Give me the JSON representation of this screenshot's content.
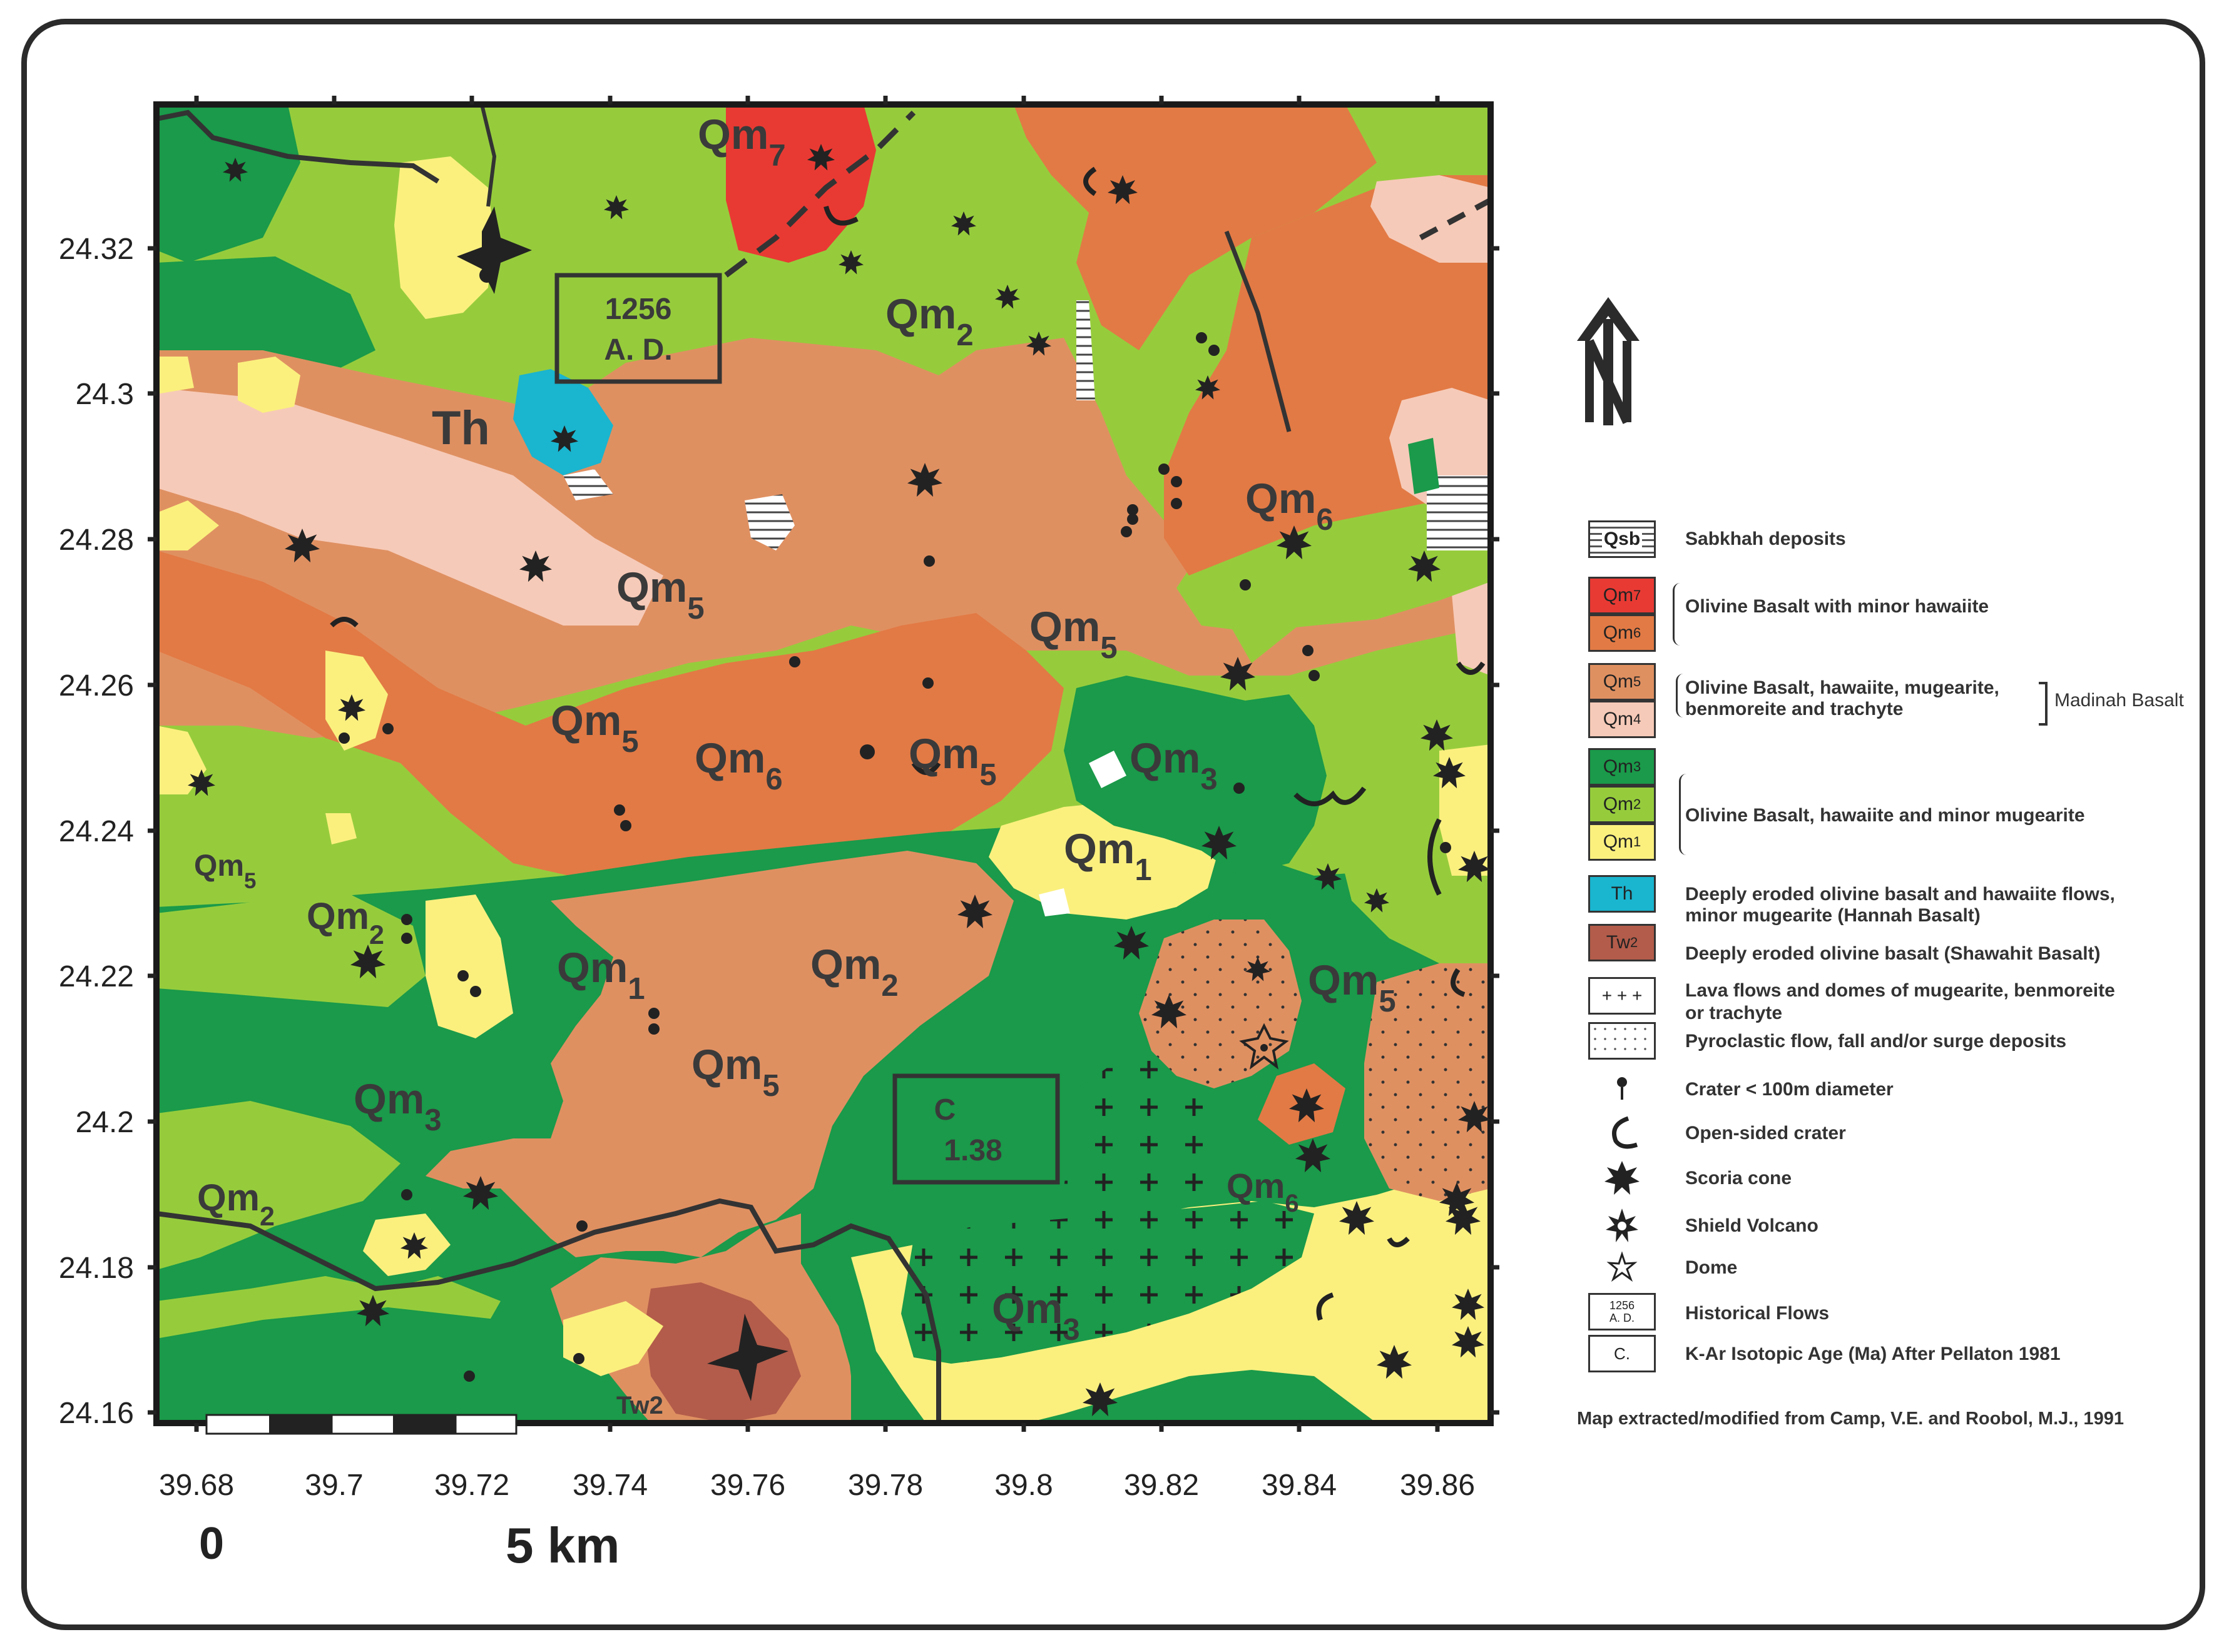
{
  "map": {
    "y_ticks": [
      "24.32",
      "24.3",
      "24.28",
      "24.26",
      "24.24",
      "24.22",
      "24.2",
      "24.18",
      "24.16"
    ],
    "x_ticks": [
      "39.68",
      "39.7",
      "39.72",
      "39.74",
      "39.76",
      "39.78",
      "39.8",
      "39.82",
      "39.84",
      "39.86"
    ],
    "scale": {
      "start": "0",
      "end": "5 km"
    },
    "north_label": "N",
    "units": [
      {
        "label": "Qm",
        "sub": "7"
      },
      {
        "label": "Qm",
        "sub": "2"
      },
      {
        "label": "Th",
        "sub": ""
      },
      {
        "label": "Qm",
        "sub": "6"
      },
      {
        "label": "Qm",
        "sub": "5"
      },
      {
        "label": "Qm",
        "sub": "5"
      },
      {
        "label": "Qm",
        "sub": "5"
      },
      {
        "label": "Qm",
        "sub": "6"
      },
      {
        "label": "Qm",
        "sub": "5"
      },
      {
        "label": "Qm",
        "sub": "3"
      },
      {
        "label": "Qm",
        "sub": "5"
      },
      {
        "label": "Qm",
        "sub": "1"
      },
      {
        "label": "Qm",
        "sub": "2"
      },
      {
        "label": "Qm",
        "sub": "1"
      },
      {
        "label": "Qm",
        "sub": "2"
      },
      {
        "label": "Qm",
        "sub": "5"
      },
      {
        "label": "Qm",
        "sub": "3"
      },
      {
        "label": "Qm",
        "sub": "5"
      },
      {
        "label": "Qm",
        "sub": "2"
      },
      {
        "label": "Qm",
        "sub": "6"
      },
      {
        "label": "Qm",
        "sub": "3"
      },
      {
        "label": "Tw2",
        "sub": ""
      }
    ],
    "boxes": [
      {
        "line1": "1256",
        "line2": "A. D."
      },
      {
        "line1": "C",
        "line2": "1.38"
      }
    ],
    "colors": {
      "qm7": "#e83a33",
      "qm6": "#e27a45",
      "qm5": "#df9061",
      "qm4": "#f6cab8",
      "qm3": "#1a9a4a",
      "qm2": "#96cc3c",
      "qm1": "#fbf07e",
      "th": "#1ab5cf",
      "tw2": "#b35c4b"
    }
  },
  "legend": {
    "items": [
      {
        "swatch": "Qsb",
        "text": "Sabkhah deposits"
      },
      {
        "swatch": "Qm7",
        "text": ""
      },
      {
        "swatch": "Qm6",
        "text": "Olivine Basalt with minor hawaiite"
      },
      {
        "swatch": "Qm5",
        "text": "Olivine Basalt, hawaiite, mugearite,"
      },
      {
        "swatch": "Qm4",
        "text": "benmoreite and trachyte"
      },
      {
        "swatch": "Qm3",
        "text": ""
      },
      {
        "swatch": "Qm2",
        "text": "Olivine Basalt, hawaiite and minor mugearite"
      },
      {
        "swatch": "Qm1",
        "text": ""
      },
      {
        "swatch": "Th",
        "text": "Deeply eroded olivine basalt and hawaiite flows,"
      },
      {
        "swatch": "Tw2",
        "text": "Deeply eroded olivine basalt (Shawahit Basalt)"
      }
    ],
    "madinah": "Madinah Basalt",
    "hannah": "minor mugearite (Hannah Basalt)",
    "lava1": "Lava flows and domes of mugearite, benmoreite",
    "lava2": "or trachyte",
    "pyro": "Pyroclastic flow, fall and/or surge deposits",
    "crater": "Crater < 100m diameter",
    "open": "Open-sided crater",
    "scoria": "Scoria cone",
    "shield": "Shield Volcano",
    "dome": "Dome",
    "hist": "Historical Flows",
    "hist_box1": "1256",
    "hist_box2": "A. D.",
    "kar": "K-Ar Isotopic Age (Ma) After Pellaton 1981",
    "kar_box": "C.",
    "source": "Map extracted/modified from Camp, V.E. and Roobol, M.J., 1991"
  }
}
